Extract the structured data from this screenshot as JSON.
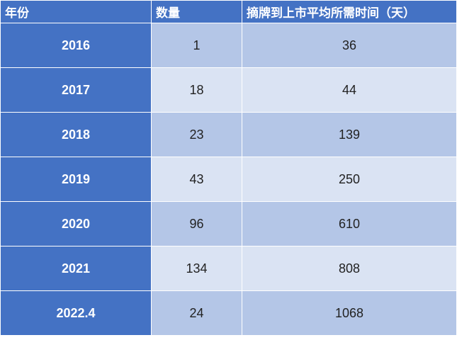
{
  "table": {
    "header": [
      "年份",
      "数量",
      "摘牌到上市平均所需时间（天）"
    ],
    "rows": [
      [
        "2016",
        1,
        36
      ],
      [
        "2017",
        18,
        44
      ],
      [
        "2018",
        23,
        139
      ],
      [
        "2019",
        43,
        250
      ],
      [
        "2020",
        96,
        610
      ],
      [
        "2021",
        134,
        808
      ],
      [
        "2022.4",
        24,
        1068
      ]
    ]
  }
}
